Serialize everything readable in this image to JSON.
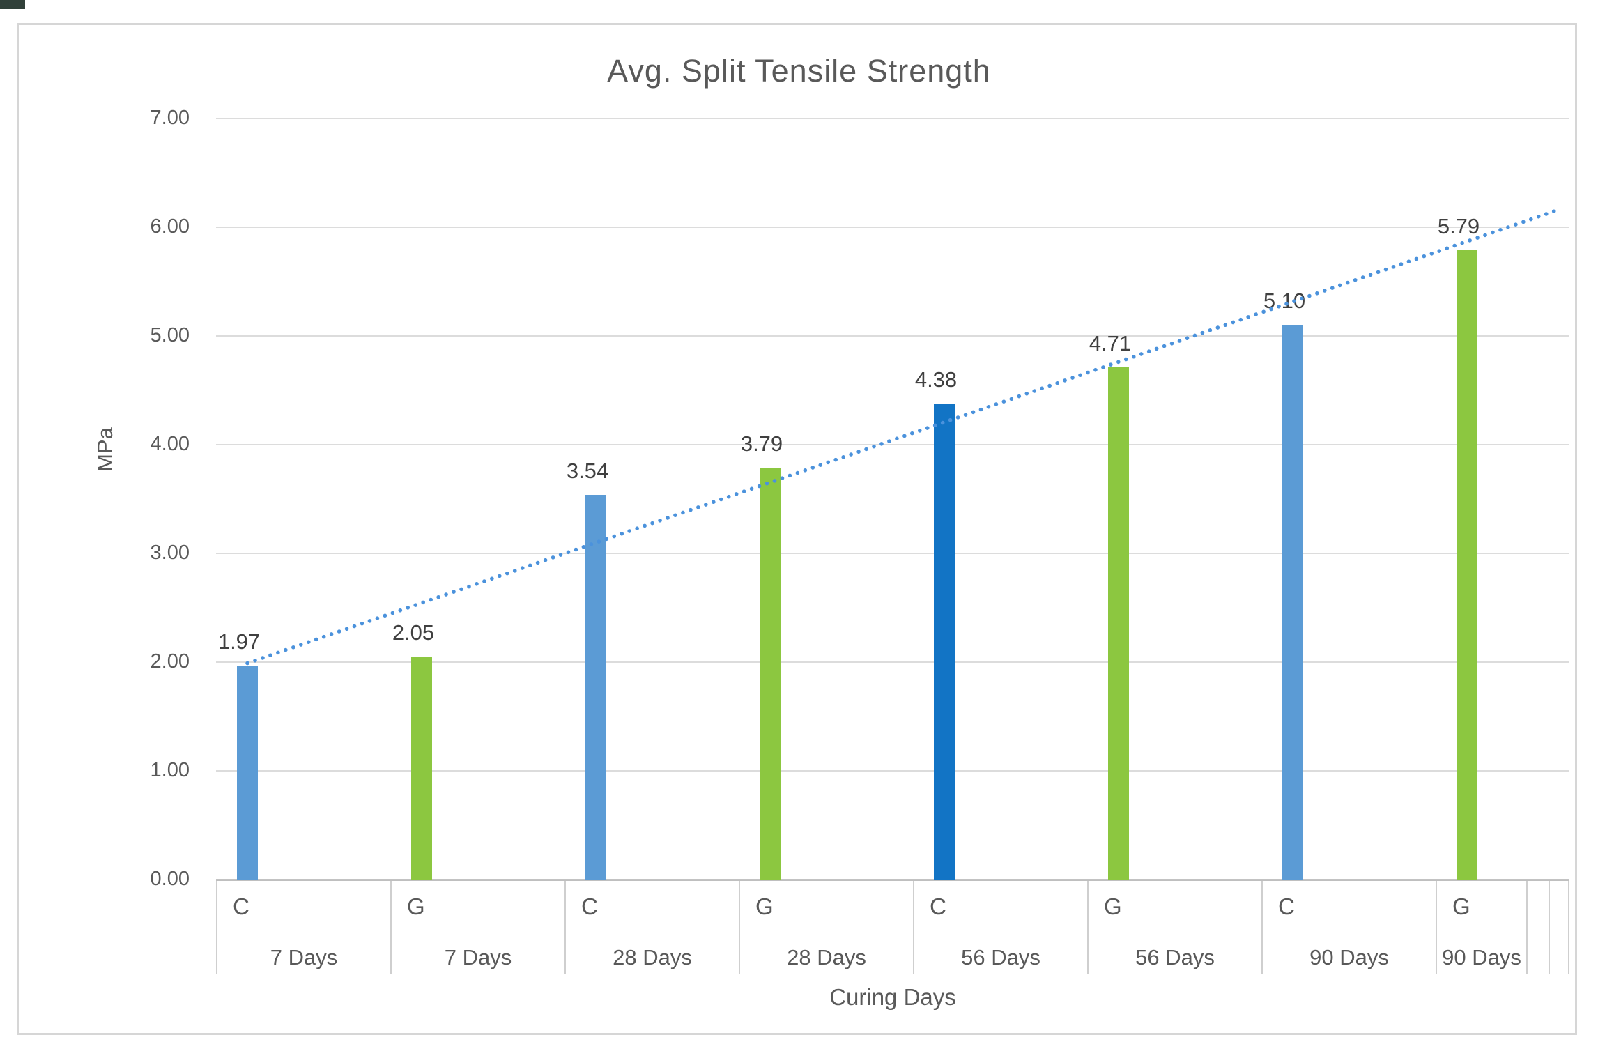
{
  "window": {
    "corner_notch_color": "#31413a"
  },
  "chart_data": {
    "type": "bar",
    "title": "Avg. Split Tensile Strength",
    "xlabel": "Curing Days",
    "ylabel": "MPa",
    "ylim": [
      0,
      7
    ],
    "ytick_labels": [
      "0.00",
      "1.00",
      "2.00",
      "3.00",
      "4.00",
      "5.00",
      "6.00",
      "7.00"
    ],
    "grid": true,
    "legend": "none",
    "bars": [
      {
        "series": "C",
        "category": "7 Days",
        "value": 1.97,
        "label": "1.97",
        "color": "#5B9BD5"
      },
      {
        "series": "G",
        "category": "7 Days",
        "value": 2.05,
        "label": "2.05",
        "color": "#8CC740"
      },
      {
        "series": "C",
        "category": "28 Days",
        "value": 3.54,
        "label": "3.54",
        "color": "#5B9BD5"
      },
      {
        "series": "G",
        "category": "28 Days",
        "value": 3.79,
        "label": "3.79",
        "color": "#8CC740"
      },
      {
        "series": "C",
        "category": "56 Days",
        "value": 4.38,
        "label": "4.38",
        "color": "#1274C5"
      },
      {
        "series": "G",
        "category": "56 Days",
        "value": 4.71,
        "label": "4.71",
        "color": "#8CC740"
      },
      {
        "series": "C",
        "category": "90 Days",
        "value": 5.1,
        "label": "5.10",
        "color": "#5B9BD5"
      },
      {
        "series": "G",
        "category": "90 Days",
        "value": 5.79,
        "label": "5.79",
        "color": "#8CC740"
      }
    ],
    "trendline": {
      "type": "linear",
      "style": "dotted",
      "color": "#4B92DC",
      "start_value": 1.99,
      "end_value": 6.16
    }
  }
}
